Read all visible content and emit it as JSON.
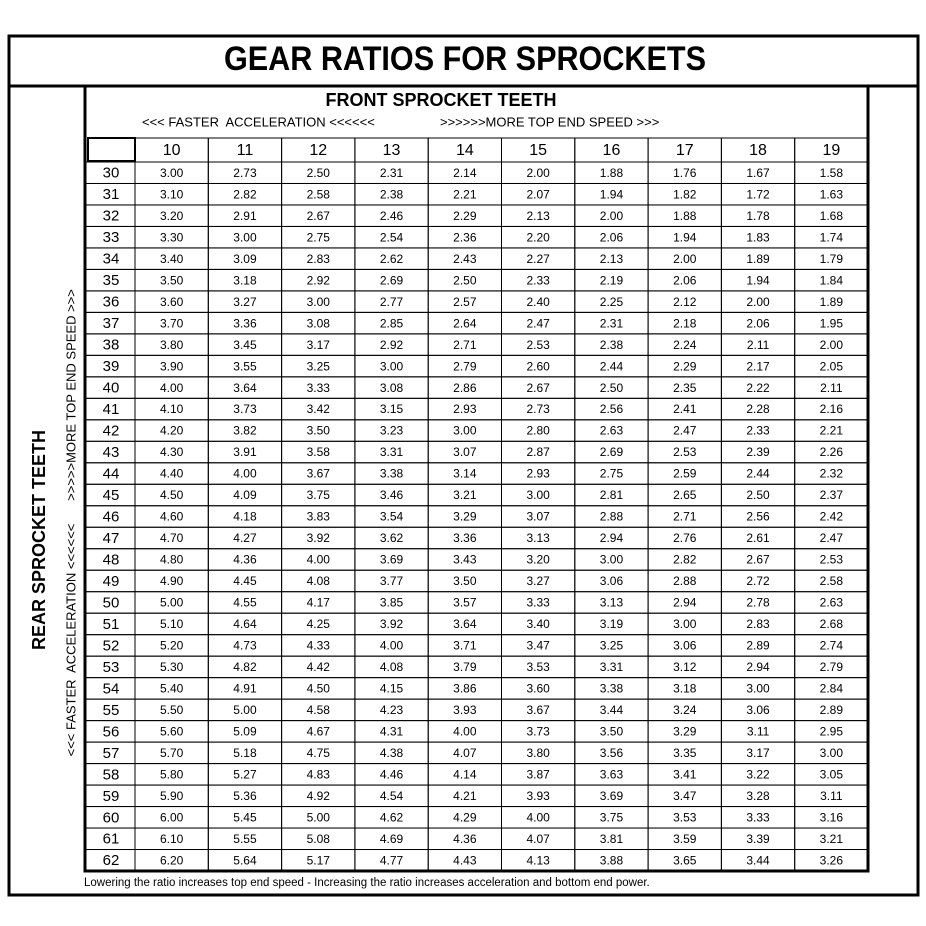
{
  "title": "GEAR RATIOS FOR SPROCKETS",
  "front_header": {
    "title": "FRONT SPROCKET TEETH",
    "left_note": "<<< FASTER  ACCELERATION <<<<<<",
    "right_note": ">>>>>>MORE TOP END SPEED >>>"
  },
  "rear_header": {
    "title": "REAR SPROCKET TEETH",
    "bottom_note": "<<< FASTER  ACCELERATION <<<<<<",
    "top_note": ">>>>>MORE TOP END SPEED >>>"
  },
  "table": {
    "columns": [
      10,
      11,
      12,
      13,
      14,
      15,
      16,
      17,
      18,
      19
    ],
    "rows": [
      {
        "label": 30,
        "values": [
          "3.00",
          "2.73",
          "2.50",
          "2.31",
          "2.14",
          "2.00",
          "1.88",
          "1.76",
          "1.67",
          "1.58"
        ]
      },
      {
        "label": 31,
        "values": [
          "3.10",
          "2.82",
          "2.58",
          "2.38",
          "2.21",
          "2.07",
          "1.94",
          "1.82",
          "1.72",
          "1.63"
        ]
      },
      {
        "label": 32,
        "values": [
          "3.20",
          "2.91",
          "2.67",
          "2.46",
          "2.29",
          "2.13",
          "2.00",
          "1.88",
          "1.78",
          "1.68"
        ]
      },
      {
        "label": 33,
        "values": [
          "3.30",
          "3.00",
          "2.75",
          "2.54",
          "2.36",
          "2.20",
          "2.06",
          "1.94",
          "1.83",
          "1.74"
        ]
      },
      {
        "label": 34,
        "values": [
          "3.40",
          "3.09",
          "2.83",
          "2.62",
          "2.43",
          "2.27",
          "2.13",
          "2.00",
          "1.89",
          "1.79"
        ]
      },
      {
        "label": 35,
        "values": [
          "3.50",
          "3.18",
          "2.92",
          "2.69",
          "2.50",
          "2.33",
          "2.19",
          "2.06",
          "1.94",
          "1.84"
        ]
      },
      {
        "label": 36,
        "values": [
          "3.60",
          "3.27",
          "3.00",
          "2.77",
          "2.57",
          "2.40",
          "2.25",
          "2.12",
          "2.00",
          "1.89"
        ]
      },
      {
        "label": 37,
        "values": [
          "3.70",
          "3.36",
          "3.08",
          "2.85",
          "2.64",
          "2.47",
          "2.31",
          "2.18",
          "2.06",
          "1.95"
        ]
      },
      {
        "label": 38,
        "values": [
          "3.80",
          "3.45",
          "3.17",
          "2.92",
          "2.71",
          "2.53",
          "2.38",
          "2.24",
          "2.11",
          "2.00"
        ]
      },
      {
        "label": 39,
        "values": [
          "3.90",
          "3.55",
          "3.25",
          "3.00",
          "2.79",
          "2.60",
          "2.44",
          "2.29",
          "2.17",
          "2.05"
        ]
      },
      {
        "label": 40,
        "values": [
          "4.00",
          "3.64",
          "3.33",
          "3.08",
          "2.86",
          "2.67",
          "2.50",
          "2.35",
          "2.22",
          "2.11"
        ]
      },
      {
        "label": 41,
        "values": [
          "4.10",
          "3.73",
          "3.42",
          "3.15",
          "2.93",
          "2.73",
          "2.56",
          "2.41",
          "2.28",
          "2.16"
        ]
      },
      {
        "label": 42,
        "values": [
          "4.20",
          "3.82",
          "3.50",
          "3.23",
          "3.00",
          "2.80",
          "2.63",
          "2.47",
          "2.33",
          "2.21"
        ]
      },
      {
        "label": 43,
        "values": [
          "4.30",
          "3.91",
          "3.58",
          "3.31",
          "3.07",
          "2.87",
          "2.69",
          "2.53",
          "2.39",
          "2.26"
        ]
      },
      {
        "label": 44,
        "values": [
          "4.40",
          "4.00",
          "3.67",
          "3.38",
          "3.14",
          "2.93",
          "2.75",
          "2.59",
          "2.44",
          "2.32"
        ]
      },
      {
        "label": 45,
        "values": [
          "4.50",
          "4.09",
          "3.75",
          "3.46",
          "3.21",
          "3.00",
          "2.81",
          "2.65",
          "2.50",
          "2.37"
        ]
      },
      {
        "label": 46,
        "values": [
          "4.60",
          "4.18",
          "3.83",
          "3.54",
          "3.29",
          "3.07",
          "2.88",
          "2.71",
          "2.56",
          "2.42"
        ]
      },
      {
        "label": 47,
        "values": [
          "4.70",
          "4.27",
          "3.92",
          "3.62",
          "3.36",
          "3.13",
          "2.94",
          "2.76",
          "2.61",
          "2.47"
        ]
      },
      {
        "label": 48,
        "values": [
          "4.80",
          "4.36",
          "4.00",
          "3.69",
          "3.43",
          "3.20",
          "3.00",
          "2.82",
          "2.67",
          "2.53"
        ]
      },
      {
        "label": 49,
        "values": [
          "4.90",
          "4.45",
          "4.08",
          "3.77",
          "3.50",
          "3.27",
          "3.06",
          "2.88",
          "2.72",
          "2.58"
        ]
      },
      {
        "label": 50,
        "values": [
          "5.00",
          "4.55",
          "4.17",
          "3.85",
          "3.57",
          "3.33",
          "3.13",
          "2.94",
          "2.78",
          "2.63"
        ]
      },
      {
        "label": 51,
        "values": [
          "5.10",
          "4.64",
          "4.25",
          "3.92",
          "3.64",
          "3.40",
          "3.19",
          "3.00",
          "2.83",
          "2.68"
        ]
      },
      {
        "label": 52,
        "values": [
          "5.20",
          "4.73",
          "4.33",
          "4.00",
          "3.71",
          "3.47",
          "3.25",
          "3.06",
          "2.89",
          "2.74"
        ]
      },
      {
        "label": 53,
        "values": [
          "5.30",
          "4.82",
          "4.42",
          "4.08",
          "3.79",
          "3.53",
          "3.31",
          "3.12",
          "2.94",
          "2.79"
        ]
      },
      {
        "label": 54,
        "values": [
          "5.40",
          "4.91",
          "4.50",
          "4.15",
          "3.86",
          "3.60",
          "3.38",
          "3.18",
          "3.00",
          "2.84"
        ]
      },
      {
        "label": 55,
        "values": [
          "5.50",
          "5.00",
          "4.58",
          "4.23",
          "3.93",
          "3.67",
          "3.44",
          "3.24",
          "3.06",
          "2.89"
        ]
      },
      {
        "label": 56,
        "values": [
          "5.60",
          "5.09",
          "4.67",
          "4.31",
          "4.00",
          "3.73",
          "3.50",
          "3.29",
          "3.11",
          "2.95"
        ]
      },
      {
        "label": 57,
        "values": [
          "5.70",
          "5.18",
          "4.75",
          "4.38",
          "4.07",
          "3.80",
          "3.56",
          "3.35",
          "3.17",
          "3.00"
        ]
      },
      {
        "label": 58,
        "values": [
          "5.80",
          "5.27",
          "4.83",
          "4.46",
          "4.14",
          "3.87",
          "3.63",
          "3.41",
          "3.22",
          "3.05"
        ]
      },
      {
        "label": 59,
        "values": [
          "5.90",
          "5.36",
          "4.92",
          "4.54",
          "4.21",
          "3.93",
          "3.69",
          "3.47",
          "3.28",
          "3.11"
        ]
      },
      {
        "label": 60,
        "values": [
          "6.00",
          "5.45",
          "5.00",
          "4.62",
          "4.29",
          "4.00",
          "3.75",
          "3.53",
          "3.33",
          "3.16"
        ]
      },
      {
        "label": 61,
        "values": [
          "6.10",
          "5.55",
          "5.08",
          "4.69",
          "4.36",
          "4.07",
          "3.81",
          "3.59",
          "3.39",
          "3.21"
        ]
      },
      {
        "label": 62,
        "values": [
          "6.20",
          "5.64",
          "5.17",
          "4.77",
          "4.43",
          "4.13",
          "3.88",
          "3.65",
          "3.44",
          "3.26"
        ]
      }
    ]
  },
  "footer": "Lowering the ratio increases top end speed - Increasing the ratio increases acceleration and bottom end power."
}
